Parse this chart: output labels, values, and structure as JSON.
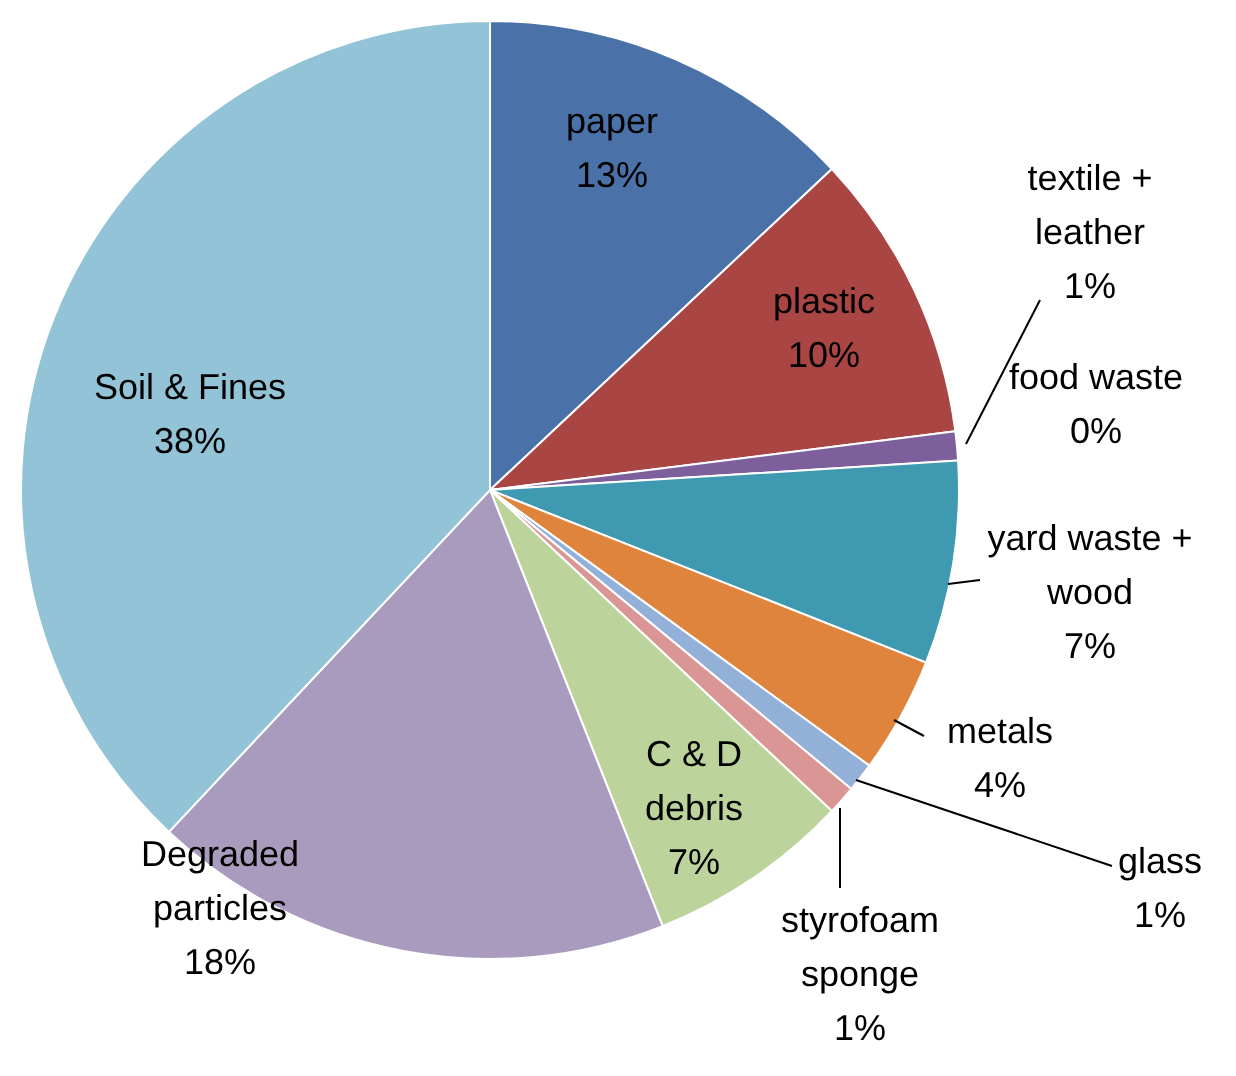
{
  "chart_data": {
    "type": "pie",
    "categories": [
      "paper",
      "plastic",
      "textile + leather",
      "food waste",
      "yard waste + wood",
      "metals",
      "glass",
      "styrofoam sponge",
      "C & D debris",
      "Degraded particles",
      "Soil & Fines"
    ],
    "values": [
      13,
      10,
      1,
      0,
      7,
      4,
      1,
      1,
      7,
      18,
      38
    ],
    "colors": [
      "#4a72a8",
      "#a94543",
      "#7d5f9c",
      "#8aa84e",
      "#3f99b0",
      "#df843d",
      "#93b0d8",
      "#d99694",
      "#bcd49b",
      "#a99bbd",
      "#93c3d6"
    ],
    "value_labels": [
      "13%",
      "10%",
      "1%",
      "0%",
      "7%",
      "4%",
      "1%",
      "1%",
      "7%",
      "18%",
      "38%"
    ],
    "legend": false
  }
}
